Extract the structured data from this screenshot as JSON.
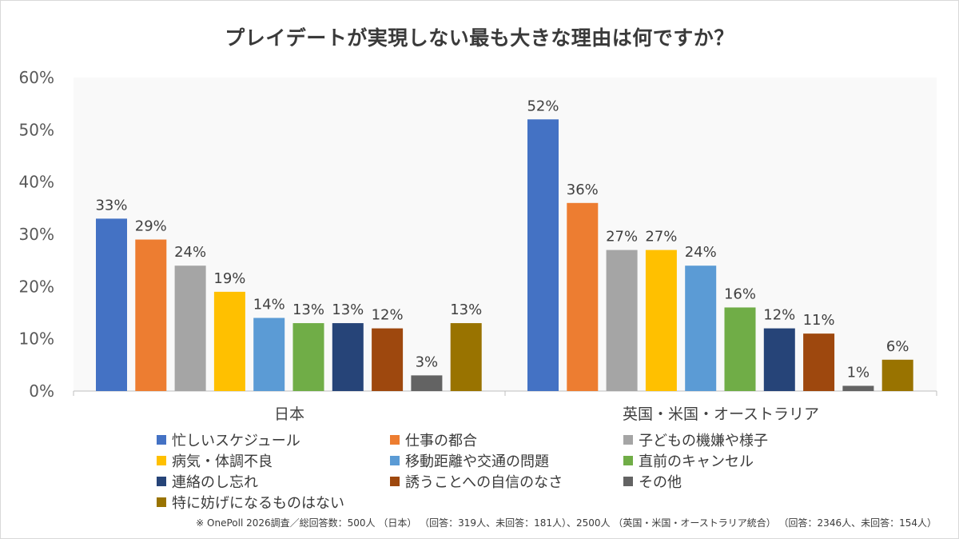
{
  "chart_data": {
    "type": "bar",
    "title": "プレイデートが実現しない最も大きな理由は何ですか？",
    "categories": [
      "日本",
      "英国・米国・オーストラリア"
    ],
    "ylim": [
      0,
      60
    ],
    "yticks": [
      "0%",
      "10%",
      "20%",
      "30%",
      "40%",
      "50%",
      "60%"
    ],
    "grid": false,
    "legend_placement": "bottom",
    "series": [
      {
        "name": "忙しいスケジュール",
        "color": "#4472c4",
        "values": [
          33,
          52
        ],
        "labels": [
          "33%",
          "52%"
        ]
      },
      {
        "name": "仕事の都合",
        "color": "#ed7d31",
        "values": [
          29,
          36
        ],
        "labels": [
          "29%",
          "36%"
        ]
      },
      {
        "name": "子どもの機嫌や様子",
        "color": "#a5a5a5",
        "values": [
          24,
          27
        ],
        "labels": [
          "24%",
          "27%"
        ]
      },
      {
        "name": "病気・体調不良",
        "color": "#ffc000",
        "values": [
          19,
          27
        ],
        "labels": [
          "19%",
          "27%"
        ]
      },
      {
        "name": "移動距離や交通の問題",
        "color": "#5b9bd5",
        "values": [
          14,
          24
        ],
        "labels": [
          "14%",
          "24%"
        ]
      },
      {
        "name": "直前のキャンセル",
        "color": "#70ad47",
        "values": [
          13,
          16
        ],
        "labels": [
          "13%",
          "16%"
        ]
      },
      {
        "name": "連絡のし忘れ",
        "color": "#264478",
        "values": [
          13,
          12
        ],
        "labels": [
          "13%",
          "12%"
        ]
      },
      {
        "name": "誘うことへの自信のなさ",
        "color": "#9e480e",
        "values": [
          12,
          11
        ],
        "labels": [
          "12%",
          "11%"
        ]
      },
      {
        "name": "その他",
        "color": "#636363",
        "values": [
          3,
          1
        ],
        "labels": [
          "3%",
          "1%"
        ]
      },
      {
        "name": "特に妨げになるものはない",
        "color": "#997300",
        "values": [
          13,
          6
        ],
        "labels": [
          "13%",
          "6%"
        ]
      }
    ]
  },
  "footnote": "※ OnePoll 2026調査／総回答数：500人 （日本） （回答：319人、未回答：181人）、2500人 （英国・米国・オーストラリア統合） （回答：2346人、未回答：154人）"
}
